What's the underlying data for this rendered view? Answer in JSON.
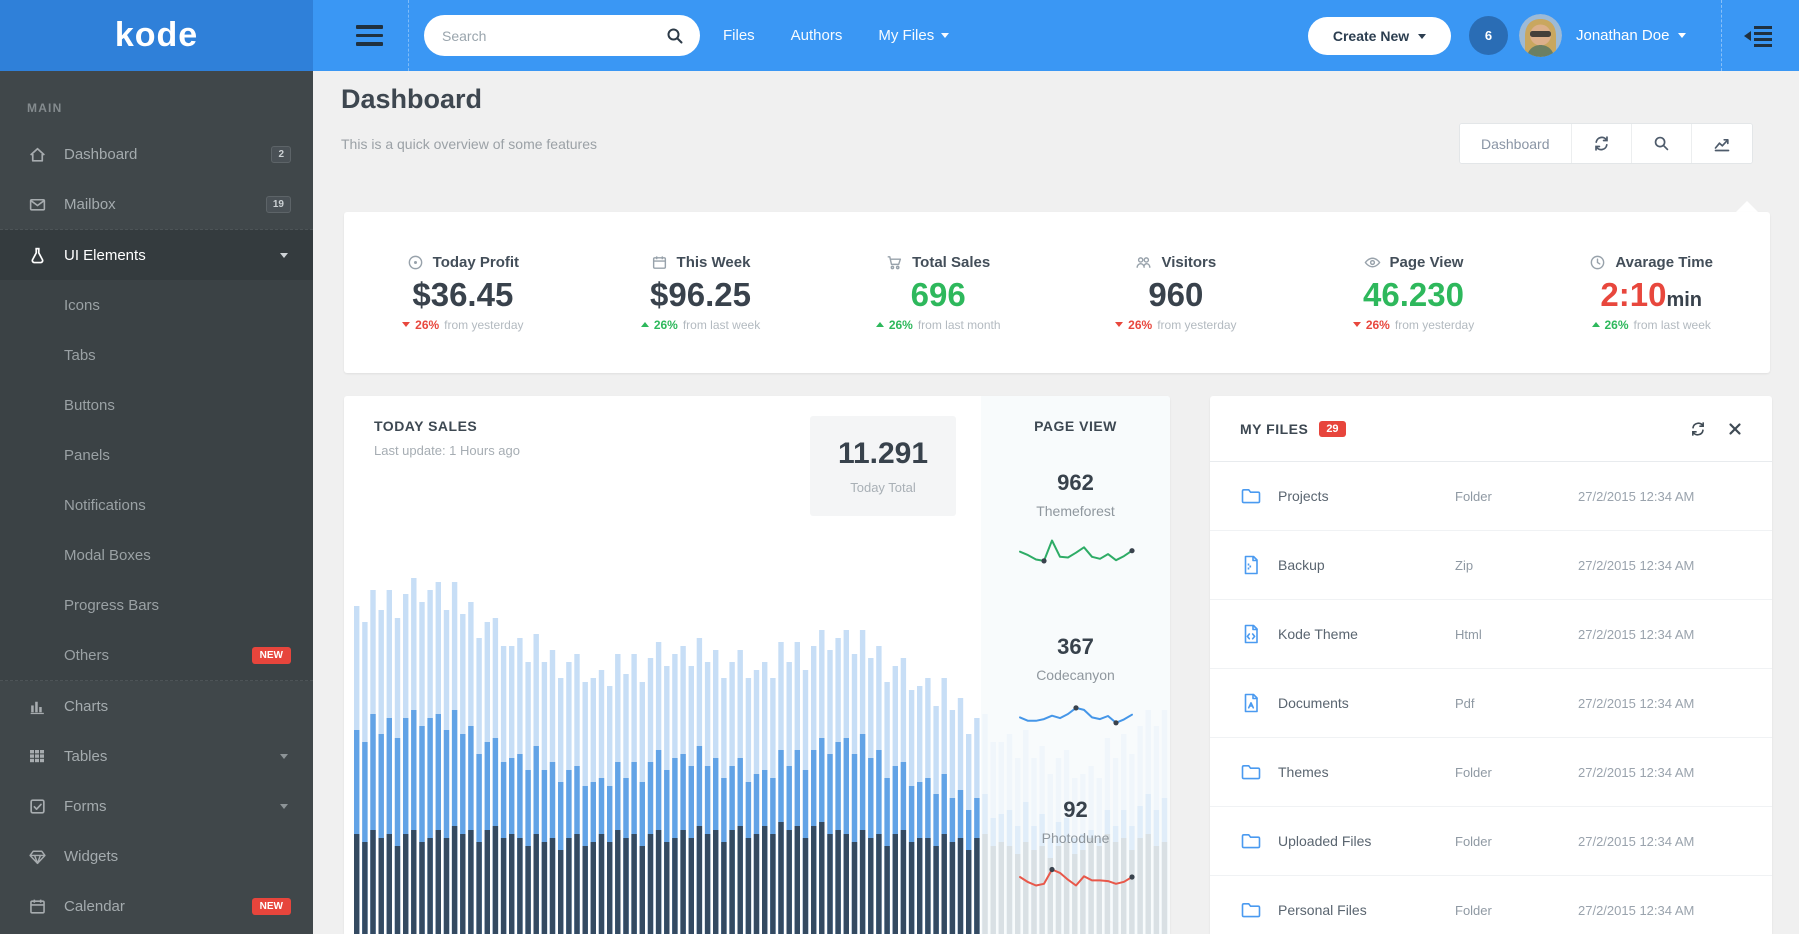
{
  "colors": {
    "green": "#2eb85c",
    "red": "#e8473d",
    "dark": "#39424c",
    "accent_blue": "#3a97f4"
  },
  "header": {
    "logo": "kode",
    "search_placeholder": "Search",
    "nav": [
      {
        "label": "Files"
      },
      {
        "label": "Authors"
      },
      {
        "label": "My Files"
      }
    ],
    "create_new_label": "Create New",
    "notification_count": "6",
    "user_name": "Jonathan Doe"
  },
  "sidebar": {
    "section_label": "MAIN",
    "items": [
      {
        "label": "Dashboard",
        "badge": "2"
      },
      {
        "label": "Mailbox",
        "badge": "19"
      },
      {
        "label": "UI Elements"
      },
      {
        "label": "Icons"
      },
      {
        "label": "Tabs"
      },
      {
        "label": "Buttons"
      },
      {
        "label": "Panels"
      },
      {
        "label": "Notifications"
      },
      {
        "label": "Modal Boxes"
      },
      {
        "label": "Progress Bars"
      },
      {
        "label": "Others",
        "badge": "NEW"
      },
      {
        "label": "Charts"
      },
      {
        "label": "Tables"
      },
      {
        "label": "Forms"
      },
      {
        "label": "Widgets"
      },
      {
        "label": "Calendar",
        "badge": "NEW"
      }
    ]
  },
  "page": {
    "title": "Dashboard",
    "subtitle": "This is a quick overview of some features",
    "toolbar_breadcrumb": "Dashboard"
  },
  "stats": [
    {
      "label": "Today Profit",
      "value": "$36.45",
      "suffix": "",
      "value_color": "#39424c",
      "direction": "down",
      "delta_pct": "26%",
      "delta_text": "from yesterday"
    },
    {
      "label": "This Week",
      "value": "$96.25",
      "suffix": "",
      "value_color": "#39424c",
      "direction": "up",
      "delta_pct": "26%",
      "delta_text": "from last week"
    },
    {
      "label": "Total Sales",
      "value": "696",
      "suffix": "",
      "value_color": "#2eb85c",
      "direction": "up",
      "delta_pct": "26%",
      "delta_text": "from last month"
    },
    {
      "label": "Visitors",
      "value": "960",
      "suffix": "",
      "value_color": "#39424c",
      "direction": "down",
      "delta_pct": "26%",
      "delta_text": "from yesterday"
    },
    {
      "label": "Page View",
      "value": "46.230",
      "suffix": "",
      "value_color": "#2eb85c",
      "direction": "down",
      "delta_pct": "26%",
      "delta_text": "from yesterday"
    },
    {
      "label": "Avarage Time",
      "value": "2:10",
      "suffix": "min",
      "value_color": "#e8473d",
      "direction": "up",
      "delta_pct": "26%",
      "delta_text": "from last week"
    }
  ],
  "today_sales": {
    "title": "TODAY SALES",
    "subtitle": "Last update: 1 Hours ago",
    "total_value": "11.291",
    "total_label": "Today Total",
    "page_view_title": "PAGE VIEW",
    "sources": [
      {
        "value": "962",
        "name": "Themeforest"
      },
      {
        "value": "367",
        "name": "Codecanyon"
      },
      {
        "value": "92",
        "name": "Photodune"
      }
    ]
  },
  "files": {
    "title": "MY FILES",
    "badge": "29",
    "rows": [
      {
        "icon": "folder-icon",
        "name": "Projects",
        "type": "Folder",
        "date": "27/2/2015 12:34 AM"
      },
      {
        "icon": "file-zip-icon",
        "name": "Backup",
        "type": "Zip",
        "date": "27/2/2015 12:34 AM"
      },
      {
        "icon": "file-code-icon",
        "name": "Kode Theme",
        "type": "Html",
        "date": "27/2/2015 12:34 AM"
      },
      {
        "icon": "file-pdf-icon",
        "name": "Documents",
        "type": "Pdf",
        "date": "27/2/2015 12:34 AM"
      },
      {
        "icon": "folder-icon",
        "name": "Themes",
        "type": "Folder",
        "date": "27/2/2015 12:34 AM"
      },
      {
        "icon": "folder-icon",
        "name": "Uploaded Files",
        "type": "Folder",
        "date": "27/2/2015 12:34 AM"
      },
      {
        "icon": "folder-icon",
        "name": "Personal Files",
        "type": "Folder",
        "date": "27/2/2015 12:34 AM"
      }
    ]
  },
  "chart_data": {
    "bar": {
      "type": "bar",
      "title": "TODAY SALES",
      "total_today": "11.291",
      "unit": "percent-of-chart-height (values approximate, unlabeled axes)",
      "series": [
        {
          "name": "series-light",
          "color": "#c7def6",
          "values": [
            82,
            78,
            86,
            81,
            86,
            79,
            85,
            89,
            83,
            86,
            88,
            81,
            88,
            80,
            83,
            74,
            78,
            79,
            72,
            72,
            74,
            68,
            75,
            68,
            71,
            64,
            68,
            70,
            63,
            64,
            66,
            62,
            70,
            65,
            70,
            63,
            69,
            73,
            67,
            70,
            72,
            67,
            74,
            68,
            71,
            64,
            68,
            71,
            64,
            66,
            68,
            64,
            73,
            68,
            73,
            66,
            72,
            76,
            71,
            74,
            76,
            70,
            76,
            69,
            72,
            63,
            67,
            69,
            61,
            62,
            64,
            57,
            64,
            56,
            59,
            50,
            54,
            55,
            48,
            48,
            50,
            44,
            51,
            44,
            47,
            40,
            44,
            46,
            39,
            40,
            42,
            39,
            49,
            44,
            50,
            45,
            52,
            56,
            52,
            56
          ]
        },
        {
          "name": "series-medium",
          "color": "#62a3e6",
          "values": [
            51,
            48,
            55,
            50,
            54,
            49,
            54,
            56,
            52,
            54,
            55,
            51,
            56,
            50,
            52,
            45,
            48,
            49,
            43,
            44,
            45,
            41,
            47,
            41,
            43,
            38,
            41,
            42,
            37,
            38,
            39,
            37,
            43,
            39,
            43,
            38,
            43,
            46,
            41,
            44,
            45,
            42,
            47,
            42,
            44,
            39,
            42,
            44,
            38,
            40,
            41,
            39,
            46,
            42,
            46,
            41,
            46,
            49,
            45,
            48,
            49,
            45,
            50,
            44,
            46,
            39,
            42,
            43,
            37,
            38,
            39,
            35,
            40,
            34,
            36,
            31,
            34,
            35,
            29,
            30,
            31,
            27,
            33,
            27,
            30,
            24,
            28,
            29,
            24,
            25,
            26,
            24,
            31,
            27,
            31,
            27,
            32,
            35,
            31,
            34
          ]
        },
        {
          "name": "series-dark",
          "color": "#344a61",
          "values": [
            25,
            23,
            26,
            24,
            25,
            22,
            25,
            26,
            23,
            24,
            26,
            24,
            27,
            25,
            26,
            23,
            26,
            27,
            24,
            25,
            24,
            22,
            25,
            23,
            24,
            21,
            24,
            25,
            22,
            23,
            25,
            23,
            26,
            24,
            25,
            22,
            25,
            26,
            23,
            24,
            26,
            24,
            27,
            25,
            26,
            23,
            26,
            27,
            24,
            25,
            27,
            25,
            28,
            26,
            27,
            24,
            27,
            28,
            25,
            26,
            25,
            23,
            26,
            24,
            25,
            22,
            25,
            26,
            23,
            24,
            24,
            22,
            25,
            23,
            24,
            21,
            24,
            25,
            22,
            23,
            22,
            20,
            23,
            21,
            22,
            19,
            22,
            23,
            20,
            21,
            24,
            22,
            25,
            23,
            24,
            21,
            24,
            25,
            22,
            23
          ]
        }
      ]
    },
    "sparklines": [
      {
        "name": "Themeforest",
        "value": 962,
        "color": "#2eac66",
        "points": [
          45,
          35,
          22,
          18,
          78,
          30,
          28,
          42,
          58,
          30,
          24,
          38,
          20,
          32,
          48
        ],
        "markers": [
          3,
          14
        ]
      },
      {
        "name": "Codecanyon",
        "value": 367,
        "color": "#4596e8",
        "points": [
          40,
          30,
          30,
          35,
          45,
          38,
          50,
          68,
          62,
          40,
          35,
          44,
          24,
          34,
          48
        ],
        "markers": [
          7,
          12
        ]
      },
      {
        "name": "Photodune",
        "value": 92,
        "color": "#e8584a",
        "points": [
          50,
          35,
          25,
          30,
          72,
          62,
          42,
          25,
          52,
          40,
          40,
          38,
          30,
          36,
          50
        ],
        "markers": [
          4,
          14
        ]
      }
    ]
  }
}
